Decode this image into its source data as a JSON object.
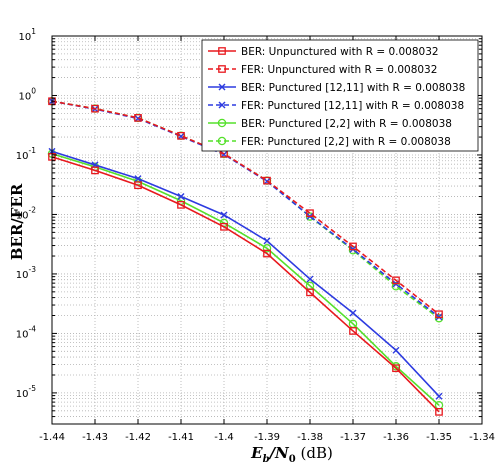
{
  "chart_data": {
    "type": "line",
    "xlabel_main": "E",
    "xlabel_sub_b": "b",
    "xlabel_mid": "/N",
    "xlabel_sub_0": "0",
    "xlabel_unit": " (dB)",
    "ylabel": "BER/FER",
    "xlim": [
      -1.44,
      -1.34
    ],
    "ylim": [
      3e-06,
      10
    ],
    "yscale": "log",
    "grid": true,
    "legend_position": "top-right",
    "x_ticks": [
      "-1.44",
      "-1.43",
      "-1.42",
      "-1.41",
      "-1.4",
      "-1.39",
      "-1.38",
      "-1.37",
      "-1.36",
      "-1.35",
      "-1.34"
    ],
    "y_ticks": [
      {
        "base": "10",
        "exp": "-5"
      },
      {
        "base": "10",
        "exp": "-4"
      },
      {
        "base": "10",
        "exp": "-3"
      },
      {
        "base": "10",
        "exp": "-2"
      },
      {
        "base": "10",
        "exp": "-1"
      },
      {
        "base": "10",
        "exp": "0"
      },
      {
        "base": "10",
        "exp": "1"
      }
    ],
    "x": [
      -1.44,
      -1.43,
      -1.42,
      -1.41,
      -1.4,
      -1.39,
      -1.38,
      -1.37,
      -1.36,
      -1.35
    ],
    "series": [
      {
        "name": "BER: Unpunctured with R = 0.008032",
        "color": "#e8191e",
        "dash": "solid",
        "marker": "square",
        "values": [
          0.093,
          0.055,
          0.031,
          0.0145,
          0.0062,
          0.0022,
          0.00049,
          0.00011,
          2.6e-05,
          4.8e-06
        ]
      },
      {
        "name": "FER: Unpunctured with R = 0.008032",
        "color": "#e8191e",
        "dash": "dashed",
        "marker": "square",
        "values": [
          0.8,
          0.6,
          0.42,
          0.21,
          0.105,
          0.037,
          0.0105,
          0.0029,
          0.00078,
          0.00021
        ]
      },
      {
        "name": "BER: Punctured [12,11] with R = 0.008038",
        "color": "#2d3be0",
        "dash": "solid",
        "marker": "x",
        "values": [
          0.115,
          0.068,
          0.04,
          0.02,
          0.0098,
          0.0036,
          0.00082,
          0.00022,
          5.2e-05,
          8.8e-06
        ]
      },
      {
        "name": "FER: Punctured [12,11] with R = 0.008038",
        "color": "#2d3be0",
        "dash": "dashed",
        "marker": "x",
        "values": [
          0.8,
          0.59,
          0.41,
          0.205,
          0.102,
          0.036,
          0.0093,
          0.0026,
          0.00068,
          0.00019
        ]
      },
      {
        "name": "BER: Punctured [2,2] with R = 0.008038",
        "color": "#55e02b",
        "dash": "solid",
        "marker": "circle",
        "values": [
          0.105,
          0.063,
          0.036,
          0.017,
          0.0072,
          0.0027,
          0.00063,
          0.000145,
          2.8e-05,
          6.2e-06
        ]
      },
      {
        "name": "FER: Punctured [2,2] with R = 0.008038",
        "color": "#55e02b",
        "dash": "dashed",
        "marker": "circle",
        "values": [
          0.8,
          0.6,
          0.42,
          0.21,
          0.104,
          0.037,
          0.0092,
          0.0025,
          0.00062,
          0.00018
        ]
      }
    ]
  }
}
